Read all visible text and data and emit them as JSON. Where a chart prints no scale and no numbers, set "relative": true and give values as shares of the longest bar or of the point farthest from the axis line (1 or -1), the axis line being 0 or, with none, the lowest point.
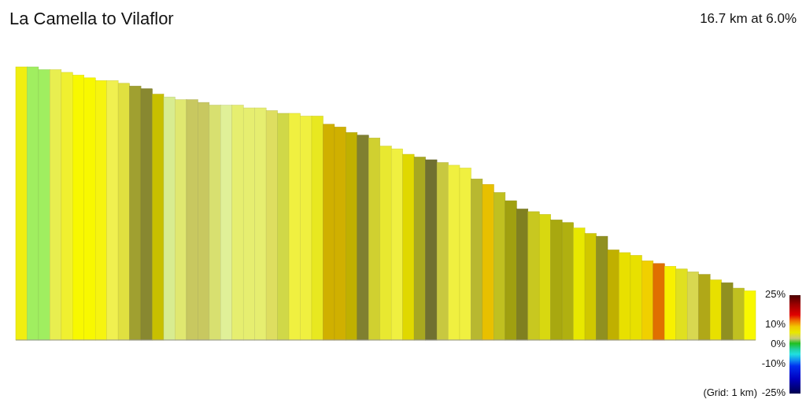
{
  "chart_data": {
    "type": "bar",
    "title": "La Camella to Vilaflor",
    "subtitle": "16.7 km at 6.0%",
    "relative": true,
    "categories": [
      null,
      null,
      null,
      null,
      null,
      null,
      null,
      null,
      null,
      null,
      null,
      null,
      null,
      null,
      null,
      null,
      null,
      null,
      null,
      null,
      null,
      null,
      null,
      null,
      null,
      null,
      null,
      null,
      null,
      null,
      null,
      null,
      null,
      null,
      null,
      null,
      null,
      null,
      null,
      null,
      null,
      null,
      null,
      null,
      null,
      null,
      null,
      null,
      null,
      null,
      null,
      null,
      null,
      null,
      null,
      null,
      null,
      null,
      null,
      null,
      null,
      null,
      null,
      null,
      null
    ],
    "values": [
      1.0,
      1.0,
      0.99,
      0.99,
      0.98,
      0.97,
      0.96,
      0.95,
      0.95,
      0.94,
      0.93,
      0.92,
      0.9,
      0.89,
      0.88,
      0.88,
      0.87,
      0.86,
      0.86,
      0.86,
      0.85,
      0.85,
      0.84,
      0.83,
      0.83,
      0.82,
      0.82,
      0.79,
      0.78,
      0.76,
      0.75,
      0.74,
      0.71,
      0.7,
      0.68,
      0.67,
      0.66,
      0.65,
      0.64,
      0.63,
      0.59,
      0.57,
      0.54,
      0.51,
      0.48,
      0.47,
      0.46,
      0.44,
      0.43,
      0.41,
      0.39,
      0.38,
      0.33,
      0.32,
      0.31,
      0.29,
      0.28,
      0.27,
      0.26,
      0.25,
      0.24,
      0.22,
      0.21,
      0.19,
      0.18
    ],
    "colors": [
      "#f0ee10",
      "#a0ee60",
      "#a0ee60",
      "#e8ee50",
      "#f0f030",
      "#f8f800",
      "#f8f800",
      "#f6f410",
      "#f0f050",
      "#e0e040",
      "#a0a030",
      "#888830",
      "#c8c000",
      "#d8ec90",
      "#e0e870",
      "#c8c860",
      "#c8c860",
      "#d8e070",
      "#e0f098",
      "#e6ee70",
      "#e6ee70",
      "#e6ee70",
      "#dede60",
      "#d0d848",
      "#f0f040",
      "#f0f040",
      "#e8e820",
      "#d0b000",
      "#d0b000",
      "#c0b000",
      "#808030",
      "#d0d030",
      "#e8e830",
      "#f0f040",
      "#e0d800",
      "#a8a820",
      "#707030",
      "#c8c840",
      "#f0f040",
      "#f0f040",
      "#b8b830",
      "#e8c000",
      "#c0c020",
      "#a0a010",
      "#808020",
      "#c8c820",
      "#d8d810",
      "#a8a810",
      "#b0b010",
      "#e8e800",
      "#d0c800",
      "#909020",
      "#c0b000",
      "#e8e000",
      "#e8e000",
      "#f0d000",
      "#e07000",
      "#f8f000",
      "#e0e020",
      "#d8d850",
      "#b0a818",
      "#e8e000",
      "#909020",
      "#c0c020",
      "#f8f800"
    ],
    "clim": [
      -25,
      25
    ],
    "cticks": [
      {
        "value": 25,
        "label": "25%"
      },
      {
        "value": 10,
        "label": "10%"
      },
      {
        "value": 0,
        "label": "0%"
      },
      {
        "value": -10,
        "label": "-10%"
      },
      {
        "value": -25,
        "label": "-25%"
      }
    ],
    "annotations": [
      "(Grid: 1 km)"
    ]
  }
}
